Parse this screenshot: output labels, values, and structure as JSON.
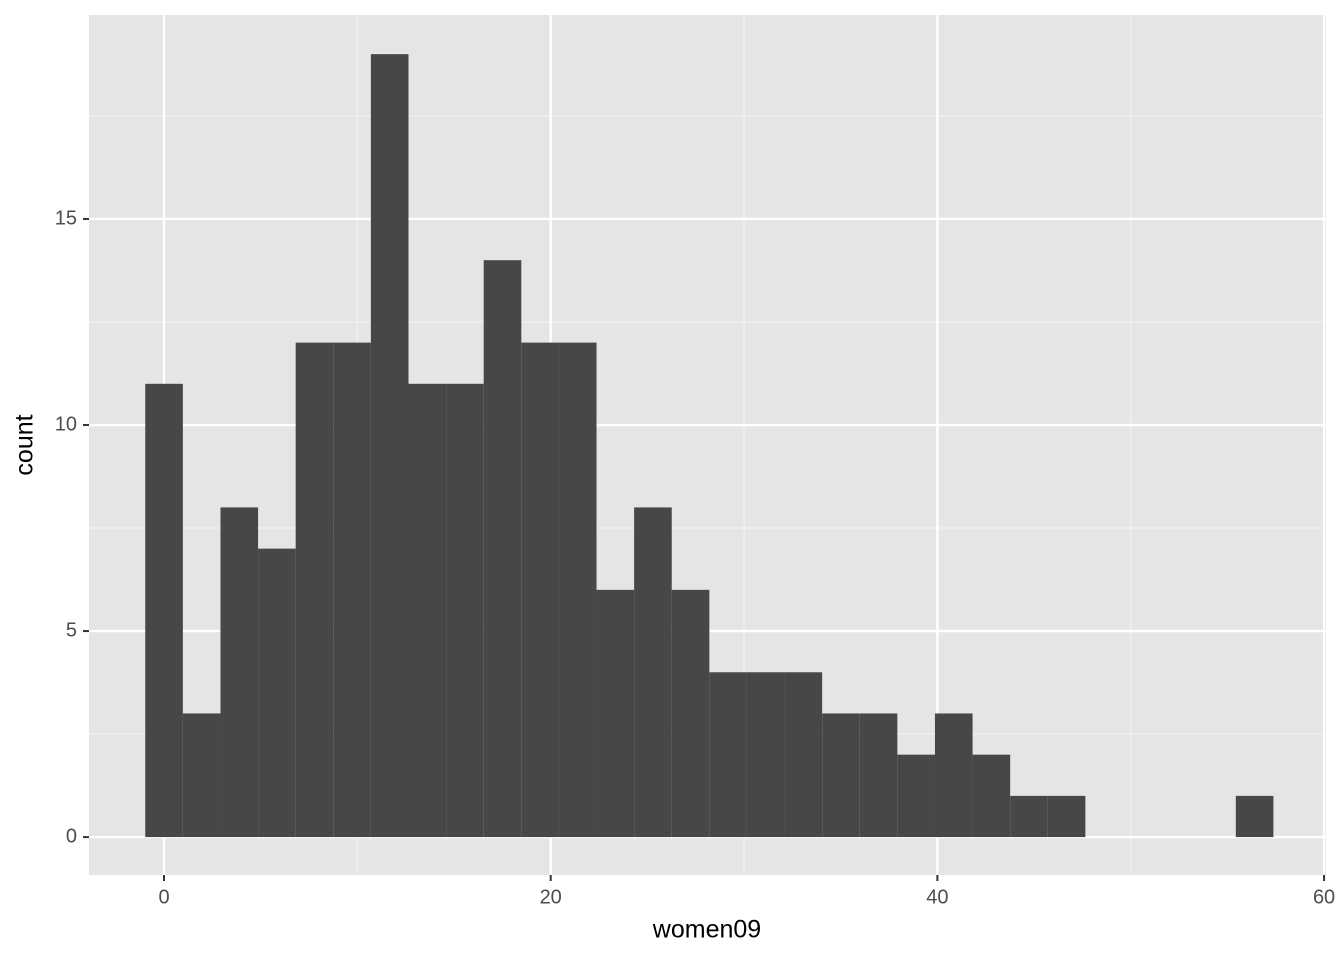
{
  "chart_data": {
    "type": "histogram",
    "x_label": "women09",
    "y_label": "count",
    "bins": [
      -0.97,
      0.975,
      2.92,
      4.865,
      6.81,
      8.755,
      10.7,
      12.645,
      14.59,
      16.535,
      18.48,
      20.425,
      22.37,
      24.315,
      26.26,
      28.205,
      30.15,
      32.095,
      34.04,
      35.985,
      37.93,
      39.875,
      41.82,
      43.765,
      45.71,
      47.655,
      49.6,
      51.545,
      53.49,
      55.435,
      57.38
    ],
    "values": [
      11,
      3,
      8,
      7,
      12,
      12,
      19,
      11,
      11,
      14,
      12,
      12,
      6,
      8,
      6,
      4,
      4,
      4,
      3,
      3,
      2,
      3,
      2,
      1,
      1,
      0,
      0,
      0,
      0,
      1
    ],
    "color": "#474747",
    "xlim": [
      -3.88,
      60.1
    ],
    "ylim": [
      -0.92,
      19.95
    ],
    "xticks": [
      0,
      20,
      40,
      60
    ],
    "yticks": [
      0,
      5,
      10,
      15
    ],
    "grid": true
  }
}
